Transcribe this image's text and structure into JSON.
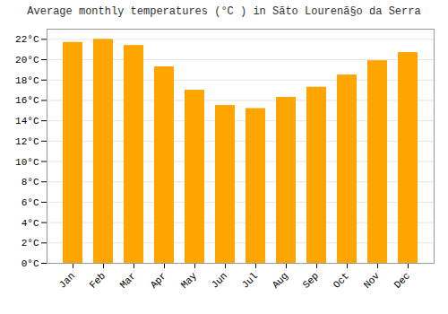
{
  "chart_data": {
    "type": "bar",
    "title": "Average monthly temperatures (°C ) in Sãto Lourenã§o da Serra",
    "categories": [
      "Jan",
      "Feb",
      "Mar",
      "Apr",
      "May",
      "Jun",
      "Jul",
      "Aug",
      "Sep",
      "Oct",
      "Nov",
      "Dec"
    ],
    "values": [
      21.7,
      22.0,
      21.4,
      19.3,
      17.0,
      15.5,
      15.2,
      16.3,
      17.3,
      18.5,
      19.9,
      20.7
    ],
    "color": "#FFA500",
    "ylim": [
      0,
      23
    ],
    "yticks": [
      {
        "value": 0,
        "label": "0°C"
      },
      {
        "value": 2,
        "label": "2°C"
      },
      {
        "value": 4,
        "label": "4°C"
      },
      {
        "value": 6,
        "label": "6°C"
      },
      {
        "value": 8,
        "label": "8°C"
      },
      {
        "value": 10,
        "label": "10°C"
      },
      {
        "value": 12,
        "label": "12°C"
      },
      {
        "value": 14,
        "label": "14°C"
      },
      {
        "value": 16,
        "label": "16°C"
      },
      {
        "value": 18,
        "label": "18°C"
      },
      {
        "value": 20,
        "label": "20°C"
      },
      {
        "value": 22,
        "label": "22°C"
      }
    ],
    "grid": true
  }
}
